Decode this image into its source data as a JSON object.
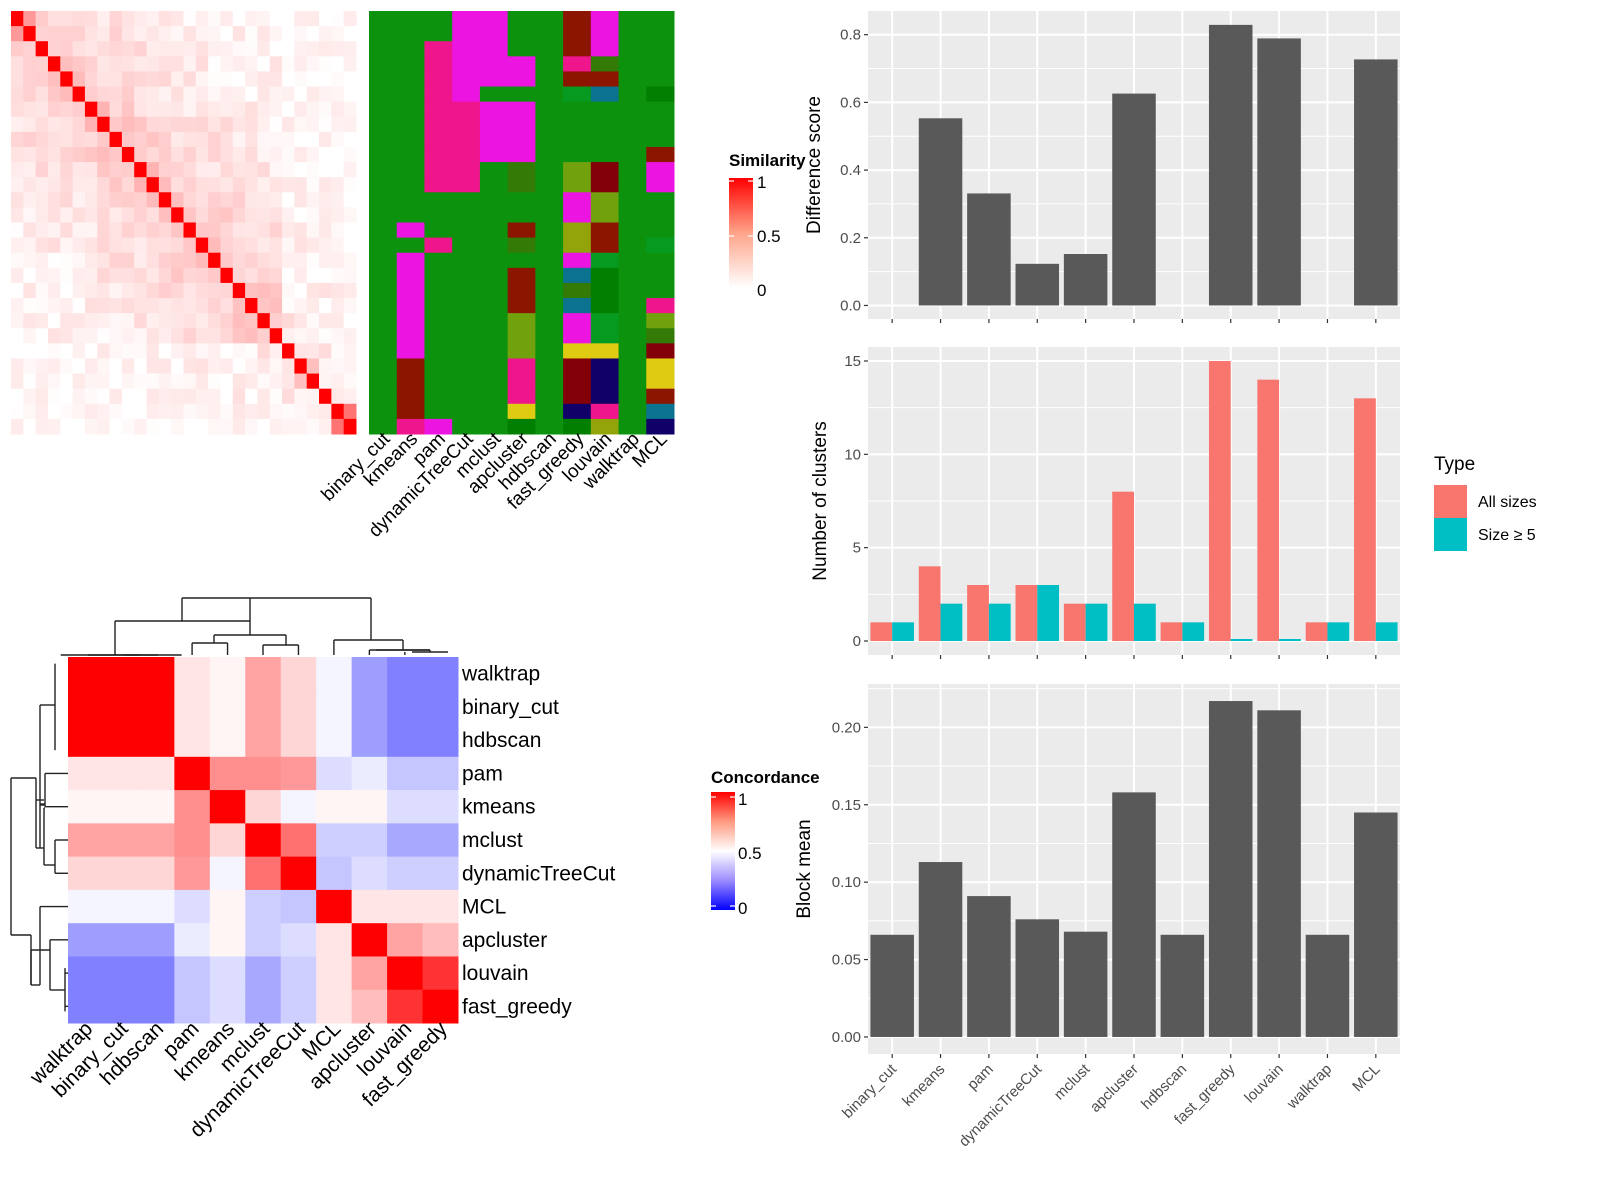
{
  "chart_data": [
    {
      "id": "similarity-heatmap",
      "type": "heatmap",
      "title": "",
      "legend": {
        "title": "Similarity",
        "ticks": [
          "1",
          "0.5",
          "0"
        ],
        "range": [
          0,
          1
        ],
        "low_color": "#ffffff",
        "high_color": "#ff0000",
        "placement": "right"
      },
      "n": 28,
      "note": "28x28 symmetric similarity matrix; diagonal = 1; off-diagonal mostly 0-0.4",
      "diagonal": 1,
      "highlight_pairs": [
        [
          26,
          27,
          0.55
        ],
        [
          0,
          1,
          0.4
        ],
        [
          10,
          11,
          0.3
        ],
        [
          6,
          7,
          0.3
        ],
        [
          12,
          13,
          0.25
        ],
        [
          23,
          24,
          0.25
        ]
      ]
    },
    {
      "id": "cluster-assignment-grid",
      "type": "heatmap",
      "columns": [
        "binary_cut",
        "kmeans",
        "pam",
        "dynamicTreeCut",
        "mclust",
        "apcluster",
        "hdbscan",
        "fast_greedy",
        "louvain",
        "walktrap",
        "MCL"
      ],
      "palette": {
        "G": "#0d920d",
        "M": "#ec14e0",
        "P": "#ef158c",
        "R": "#8c1500",
        "D": "#830008",
        "O": "#337a06",
        "Y": "#72a10e",
        "L": "#93a40b",
        "T": "#0b7290",
        "B": "#069a20",
        "K": "#007f00",
        "N": "#110068",
        "E": "#dfcb12"
      },
      "rows": [
        "GGGMMGGRMGG",
        "GGGMMGGRMGG",
        "GGPMMGGRMGG",
        "GGPMMMGPOGG",
        "GGPMMMGRRGG",
        "GGPMGGGBTGK",
        "GGPPMMGGGGG",
        "GGPPMMGGGGG",
        "GGPPMMGGGGG",
        "GGPPMMGGGGR",
        "GGPPGOGYDGM",
        "GGPPGOGYDGM",
        "GGGGGGGMYGG",
        "GGGGGGGMYGG",
        "GMGGGRGLRGG",
        "GGPGGOGLRGB",
        "GMGGGGGMBGG",
        "GMGGGRGTKGG",
        "GMGGGRGOKGG",
        "GMGGGRGTKGP",
        "GMGGGYGMBGY",
        "GMGGGYGMBGO",
        "GMGGGYGEEGD",
        "GRGGGPGDNGE",
        "GRGGGPGDNGE",
        "GRGGGPGDNGR",
        "GRGGGEGNPGT",
        "GPMGGKGKLGN"
      ]
    },
    {
      "id": "concordance-heatmap",
      "type": "heatmap",
      "legend": {
        "title": "Concordance",
        "ticks": [
          "1",
          "0.5",
          "0"
        ],
        "range": [
          0,
          1
        ],
        "low_color": "#0000ff",
        "mid_color": "#ffffff",
        "high_color": "#ff0000",
        "placement": "right"
      },
      "row_labels": [
        "walktrap",
        "binary_cut",
        "hdbscan",
        "pam",
        "kmeans",
        "mclust",
        "dynamicTreeCut",
        "MCL",
        "apcluster",
        "louvain",
        "fast_greedy"
      ],
      "col_labels": [
        "walktrap",
        "binary_cut",
        "hdbscan",
        "pam",
        "kmeans",
        "mclust",
        "dynamicTreeCut",
        "MCL",
        "apcluster",
        "louvain",
        "fast_greedy"
      ],
      "values": [
        [
          1.0,
          1.0,
          1.0,
          0.55,
          0.52,
          0.68,
          0.58,
          0.48,
          0.3,
          0.24,
          0.24
        ],
        [
          1.0,
          1.0,
          1.0,
          0.55,
          0.52,
          0.68,
          0.58,
          0.48,
          0.3,
          0.24,
          0.24
        ],
        [
          1.0,
          1.0,
          1.0,
          0.55,
          0.52,
          0.68,
          0.58,
          0.48,
          0.3,
          0.24,
          0.24
        ],
        [
          0.55,
          0.55,
          0.55,
          1.0,
          0.72,
          0.72,
          0.7,
          0.43,
          0.46,
          0.38,
          0.38
        ],
        [
          0.52,
          0.52,
          0.52,
          0.72,
          1.0,
          0.58,
          0.48,
          0.52,
          0.52,
          0.43,
          0.43
        ],
        [
          0.68,
          0.68,
          0.68,
          0.72,
          0.58,
          1.0,
          0.78,
          0.4,
          0.4,
          0.32,
          0.32
        ],
        [
          0.58,
          0.58,
          0.58,
          0.7,
          0.48,
          0.78,
          1.0,
          0.38,
          0.43,
          0.4,
          0.4
        ],
        [
          0.48,
          0.48,
          0.48,
          0.43,
          0.52,
          0.4,
          0.38,
          1.0,
          0.55,
          0.55,
          0.55
        ],
        [
          0.3,
          0.3,
          0.3,
          0.46,
          0.52,
          0.4,
          0.43,
          0.55,
          1.0,
          0.68,
          0.63
        ],
        [
          0.24,
          0.24,
          0.24,
          0.38,
          0.43,
          0.32,
          0.4,
          0.55,
          0.68,
          1.0,
          0.9
        ],
        [
          0.24,
          0.24,
          0.24,
          0.38,
          0.43,
          0.32,
          0.4,
          0.55,
          0.63,
          0.9,
          1.0
        ]
      ],
      "dendrogram": "hierarchical clustering on both rows and columns"
    },
    {
      "id": "difference-score-bar",
      "type": "bar",
      "categories": [
        "binary_cut",
        "kmeans",
        "pam",
        "dynamicTreeCut",
        "mclust",
        "apcluster",
        "hdbscan",
        "fast_greedy",
        "louvain",
        "walktrap",
        "MCL"
      ],
      "values": [
        0,
        0.553,
        0.331,
        0.123,
        0.152,
        0.626,
        0,
        0.829,
        0.789,
        0,
        0.727
      ],
      "title": "",
      "xlabel": "",
      "ylabel": "Difference score",
      "ylim": [
        -0.04,
        0.87
      ],
      "yticks": [
        "0.0",
        "0.2",
        "0.4",
        "0.6",
        "0.8"
      ],
      "ytick_values": [
        0,
        0.2,
        0.4,
        0.6,
        0.8
      ],
      "grid": true,
      "bar_color": "#595959"
    },
    {
      "id": "number-of-clusters-bar",
      "type": "bar",
      "categories": [
        "binary_cut",
        "kmeans",
        "pam",
        "dynamicTreeCut",
        "mclust",
        "apcluster",
        "hdbscan",
        "fast_greedy",
        "louvain",
        "walktrap",
        "MCL"
      ],
      "series": [
        {
          "name": "All sizes",
          "color": "#f8766d",
          "values": [
            1,
            4,
            3,
            3,
            2,
            8,
            1,
            15,
            14,
            1,
            13
          ]
        },
        {
          "name": "Size ≥ 5",
          "color": "#00bfc4",
          "values": [
            1,
            2,
            2,
            3,
            2,
            2,
            1,
            0,
            0,
            1,
            1
          ]
        }
      ],
      "ylabel": "Number of clusters",
      "ylim": [
        -0.75,
        15.75
      ],
      "yticks": [
        "0",
        "5",
        "10",
        "15"
      ],
      "ytick_values": [
        0,
        5,
        10,
        15
      ],
      "grid": true,
      "legend": {
        "title": "Type",
        "placement": "right"
      }
    },
    {
      "id": "block-mean-bar",
      "type": "bar",
      "categories": [
        "binary_cut",
        "kmeans",
        "pam",
        "dynamicTreeCut",
        "mclust",
        "apcluster",
        "hdbscan",
        "fast_greedy",
        "louvain",
        "walktrap",
        "MCL"
      ],
      "values": [
        0.066,
        0.113,
        0.091,
        0.076,
        0.068,
        0.158,
        0.066,
        0.217,
        0.211,
        0.066,
        0.145
      ],
      "ylabel": "Block mean",
      "ylim": [
        -0.011,
        0.228
      ],
      "yticks": [
        "0.00",
        "0.05",
        "0.10",
        "0.15",
        "0.20"
      ],
      "ytick_values": [
        0,
        0.05,
        0.1,
        0.15,
        0.2
      ],
      "grid": true,
      "bar_color": "#595959"
    }
  ]
}
